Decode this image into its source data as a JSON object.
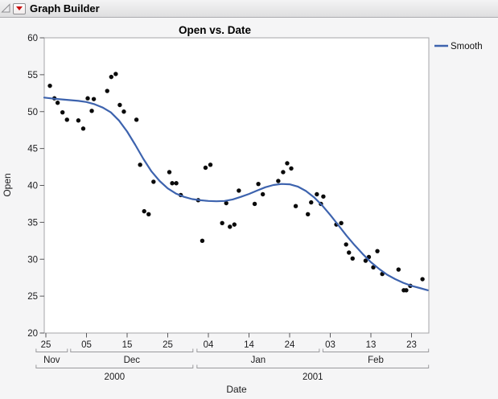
{
  "header": {
    "title": "Graph Builder",
    "disclosure_icon": "open-disclosure-triangle",
    "menu_icon": "red-triangle-menu"
  },
  "colors": {
    "smooth_line": "#3d63ae",
    "marker": "#0a0a0a",
    "plot_border": "#a5a5a8",
    "bracket_line": "#9a9a9d",
    "window_bg": "#f5f5f6",
    "plot_bg": "#ffffff",
    "red_triangle": "#c90f0f"
  },
  "chart_data": {
    "type": "scatter",
    "title": "Open vs. Date",
    "xlabel": "Date",
    "ylabel": "Open",
    "grid": false,
    "ylim": [
      20,
      60
    ],
    "y_ticks": [
      20,
      25,
      30,
      35,
      40,
      45,
      50,
      55,
      60
    ],
    "x_day0": "2000-11-25",
    "x_unit": "days since 2000-11-25",
    "xlim_days": [
      -2.5,
      94.5
    ],
    "x_ticks": [
      {
        "day": 0,
        "label": "25"
      },
      {
        "day": 10,
        "label": "05"
      },
      {
        "day": 20,
        "label": "15"
      },
      {
        "day": 30,
        "label": "25"
      },
      {
        "day": 40,
        "label": "04"
      },
      {
        "day": 50,
        "label": "14"
      },
      {
        "day": 60,
        "label": "24"
      },
      {
        "day": 70,
        "label": "03"
      },
      {
        "day": 80,
        "label": "13"
      },
      {
        "day": 90,
        "label": "23"
      }
    ],
    "x_month_groups": [
      {
        "label": "Nov",
        "start": -2.4,
        "end": 5.3
      },
      {
        "label": "Dec",
        "start": 6.1,
        "end": 36.2
      },
      {
        "label": "Jan",
        "start": 37.2,
        "end": 67.3
      },
      {
        "label": "Feb",
        "start": 68.2,
        "end": 94.2
      }
    ],
    "x_year_groups": [
      {
        "label": "2000",
        "start": -2.4,
        "end": 36.2
      },
      {
        "label": "2001",
        "start": 37.2,
        "end": 94.2
      }
    ],
    "legend": [
      {
        "label": "Smooth",
        "color": "#3d63ae",
        "type": "line"
      }
    ],
    "series": [
      {
        "name": "Open",
        "type": "scatter",
        "color": "#0a0a0a",
        "points": [
          [
            1.0,
            53.5
          ],
          [
            2.1,
            51.8
          ],
          [
            2.9,
            51.2
          ],
          [
            4.1,
            49.9
          ],
          [
            5.2,
            48.9
          ],
          [
            8.0,
            48.8
          ],
          [
            9.2,
            47.7
          ],
          [
            10.3,
            51.8
          ],
          [
            11.3,
            50.1
          ],
          [
            11.8,
            51.7
          ],
          [
            15.1,
            52.8
          ],
          [
            16.1,
            54.7
          ],
          [
            17.2,
            55.1
          ],
          [
            18.2,
            50.9
          ],
          [
            19.2,
            50.0
          ],
          [
            22.3,
            48.9
          ],
          [
            23.2,
            42.8
          ],
          [
            24.2,
            36.5
          ],
          [
            25.3,
            36.1
          ],
          [
            26.5,
            40.5
          ],
          [
            30.4,
            41.8
          ],
          [
            31.1,
            40.3
          ],
          [
            32.1,
            40.3
          ],
          [
            33.2,
            38.7
          ],
          [
            37.5,
            38.0
          ],
          [
            38.5,
            32.5
          ],
          [
            39.3,
            42.4
          ],
          [
            40.5,
            42.8
          ],
          [
            43.4,
            34.9
          ],
          [
            44.4,
            37.6
          ],
          [
            45.3,
            34.4
          ],
          [
            46.4,
            34.7
          ],
          [
            47.5,
            39.3
          ],
          [
            51.4,
            37.5
          ],
          [
            52.3,
            40.2
          ],
          [
            53.4,
            38.8
          ],
          [
            57.2,
            40.6
          ],
          [
            58.4,
            41.8
          ],
          [
            59.4,
            43.0
          ],
          [
            60.4,
            42.3
          ],
          [
            61.5,
            37.2
          ],
          [
            64.5,
            36.1
          ],
          [
            65.3,
            37.7
          ],
          [
            66.7,
            38.8
          ],
          [
            67.7,
            37.5
          ],
          [
            68.3,
            38.5
          ],
          [
            71.5,
            34.7
          ],
          [
            72.7,
            34.9
          ],
          [
            73.9,
            32.0
          ],
          [
            74.6,
            30.9
          ],
          [
            75.5,
            30.1
          ],
          [
            78.7,
            29.8
          ],
          [
            79.5,
            30.3
          ],
          [
            80.6,
            28.9
          ],
          [
            81.6,
            31.1
          ],
          [
            82.8,
            28.0
          ],
          [
            86.8,
            28.6
          ],
          [
            88.1,
            25.8
          ],
          [
            88.7,
            25.8
          ],
          [
            89.7,
            26.4
          ],
          [
            92.7,
            27.3
          ]
        ]
      },
      {
        "name": "Smooth",
        "type": "line",
        "color": "#3d63ae",
        "points": [
          [
            -0.4,
            51.9
          ],
          [
            2,
            51.75
          ],
          [
            4,
            51.65
          ],
          [
            6,
            51.55
          ],
          [
            8,
            51.45
          ],
          [
            10,
            51.3
          ],
          [
            12,
            51.0
          ],
          [
            14,
            50.55
          ],
          [
            16,
            49.9
          ],
          [
            18,
            48.8
          ],
          [
            20,
            47.3
          ],
          [
            22,
            45.5
          ],
          [
            24,
            43.6
          ],
          [
            26,
            41.9
          ],
          [
            28,
            40.6
          ],
          [
            30,
            39.6
          ],
          [
            32,
            38.9
          ],
          [
            34,
            38.45
          ],
          [
            36,
            38.15
          ],
          [
            38,
            38.0
          ],
          [
            40,
            37.9
          ],
          [
            42,
            37.85
          ],
          [
            44,
            37.9
          ],
          [
            46,
            38.1
          ],
          [
            48,
            38.45
          ],
          [
            50,
            38.85
          ],
          [
            52,
            39.3
          ],
          [
            54,
            39.75
          ],
          [
            56,
            40.05
          ],
          [
            58,
            40.2
          ],
          [
            60,
            40.15
          ],
          [
            62,
            39.85
          ],
          [
            64,
            39.25
          ],
          [
            66,
            38.4
          ],
          [
            68,
            37.3
          ],
          [
            70,
            36.0
          ],
          [
            72,
            34.6
          ],
          [
            74,
            33.2
          ],
          [
            76,
            31.9
          ],
          [
            78,
            30.7
          ],
          [
            80,
            29.6
          ],
          [
            82,
            28.7
          ],
          [
            84,
            27.9
          ],
          [
            86,
            27.3
          ],
          [
            88,
            26.8
          ],
          [
            90,
            26.4
          ],
          [
            92,
            26.1
          ],
          [
            94,
            25.8
          ]
        ]
      }
    ]
  }
}
